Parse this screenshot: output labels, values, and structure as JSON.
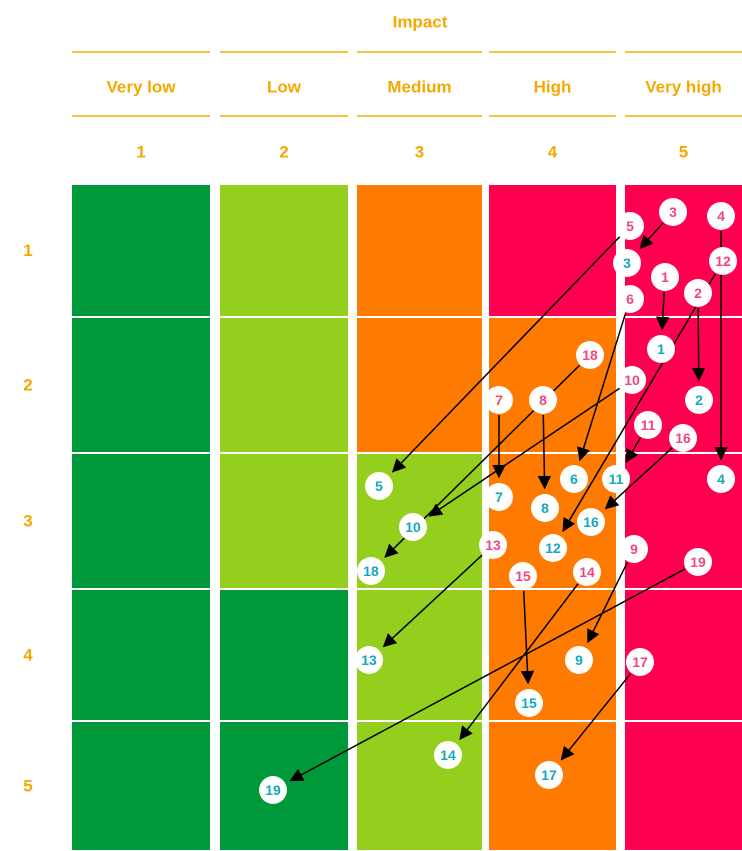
{
  "header": {
    "title": "Impact"
  },
  "columns": [
    {
      "label": "Very low",
      "number": "1"
    },
    {
      "label": "Low",
      "number": "2"
    },
    {
      "label": "Medium",
      "number": "3"
    },
    {
      "label": "High",
      "number": "4"
    },
    {
      "label": "Very high",
      "number": "5"
    }
  ],
  "rows": [
    "1",
    "2",
    "3",
    "4",
    "5"
  ],
  "cells": [
    [
      "#00993a",
      "#95cf1e",
      "#ff7a00",
      "#ff0050",
      "#ff0050"
    ],
    [
      "#00993a",
      "#95cf1e",
      "#ff7a00",
      "#ff7a00",
      "#ff0050"
    ],
    [
      "#00993a",
      "#95cf1e",
      "#95cf1e",
      "#ff7a00",
      "#ff0050"
    ],
    [
      "#00993a",
      "#00993a",
      "#95cf1e",
      "#ff7a00",
      "#ff0050"
    ],
    [
      "#00993a",
      "#00993a",
      "#95cf1e",
      "#ff7a00",
      "#ff0050"
    ]
  ],
  "before": {
    "color": "#f0467f",
    "labels": [
      "1",
      "2",
      "3",
      "4",
      "5",
      "6",
      "7",
      "8",
      "9",
      "10",
      "11",
      "12",
      "13",
      "14",
      "15",
      "16",
      "17",
      "18",
      "19"
    ]
  },
  "after": {
    "color": "#13a8c0",
    "labels": [
      "1",
      "2",
      "3",
      "4",
      "5",
      "6",
      "7",
      "8",
      "9",
      "10",
      "11",
      "12",
      "13",
      "14",
      "15",
      "16",
      "17",
      "18",
      "19"
    ]
  }
}
